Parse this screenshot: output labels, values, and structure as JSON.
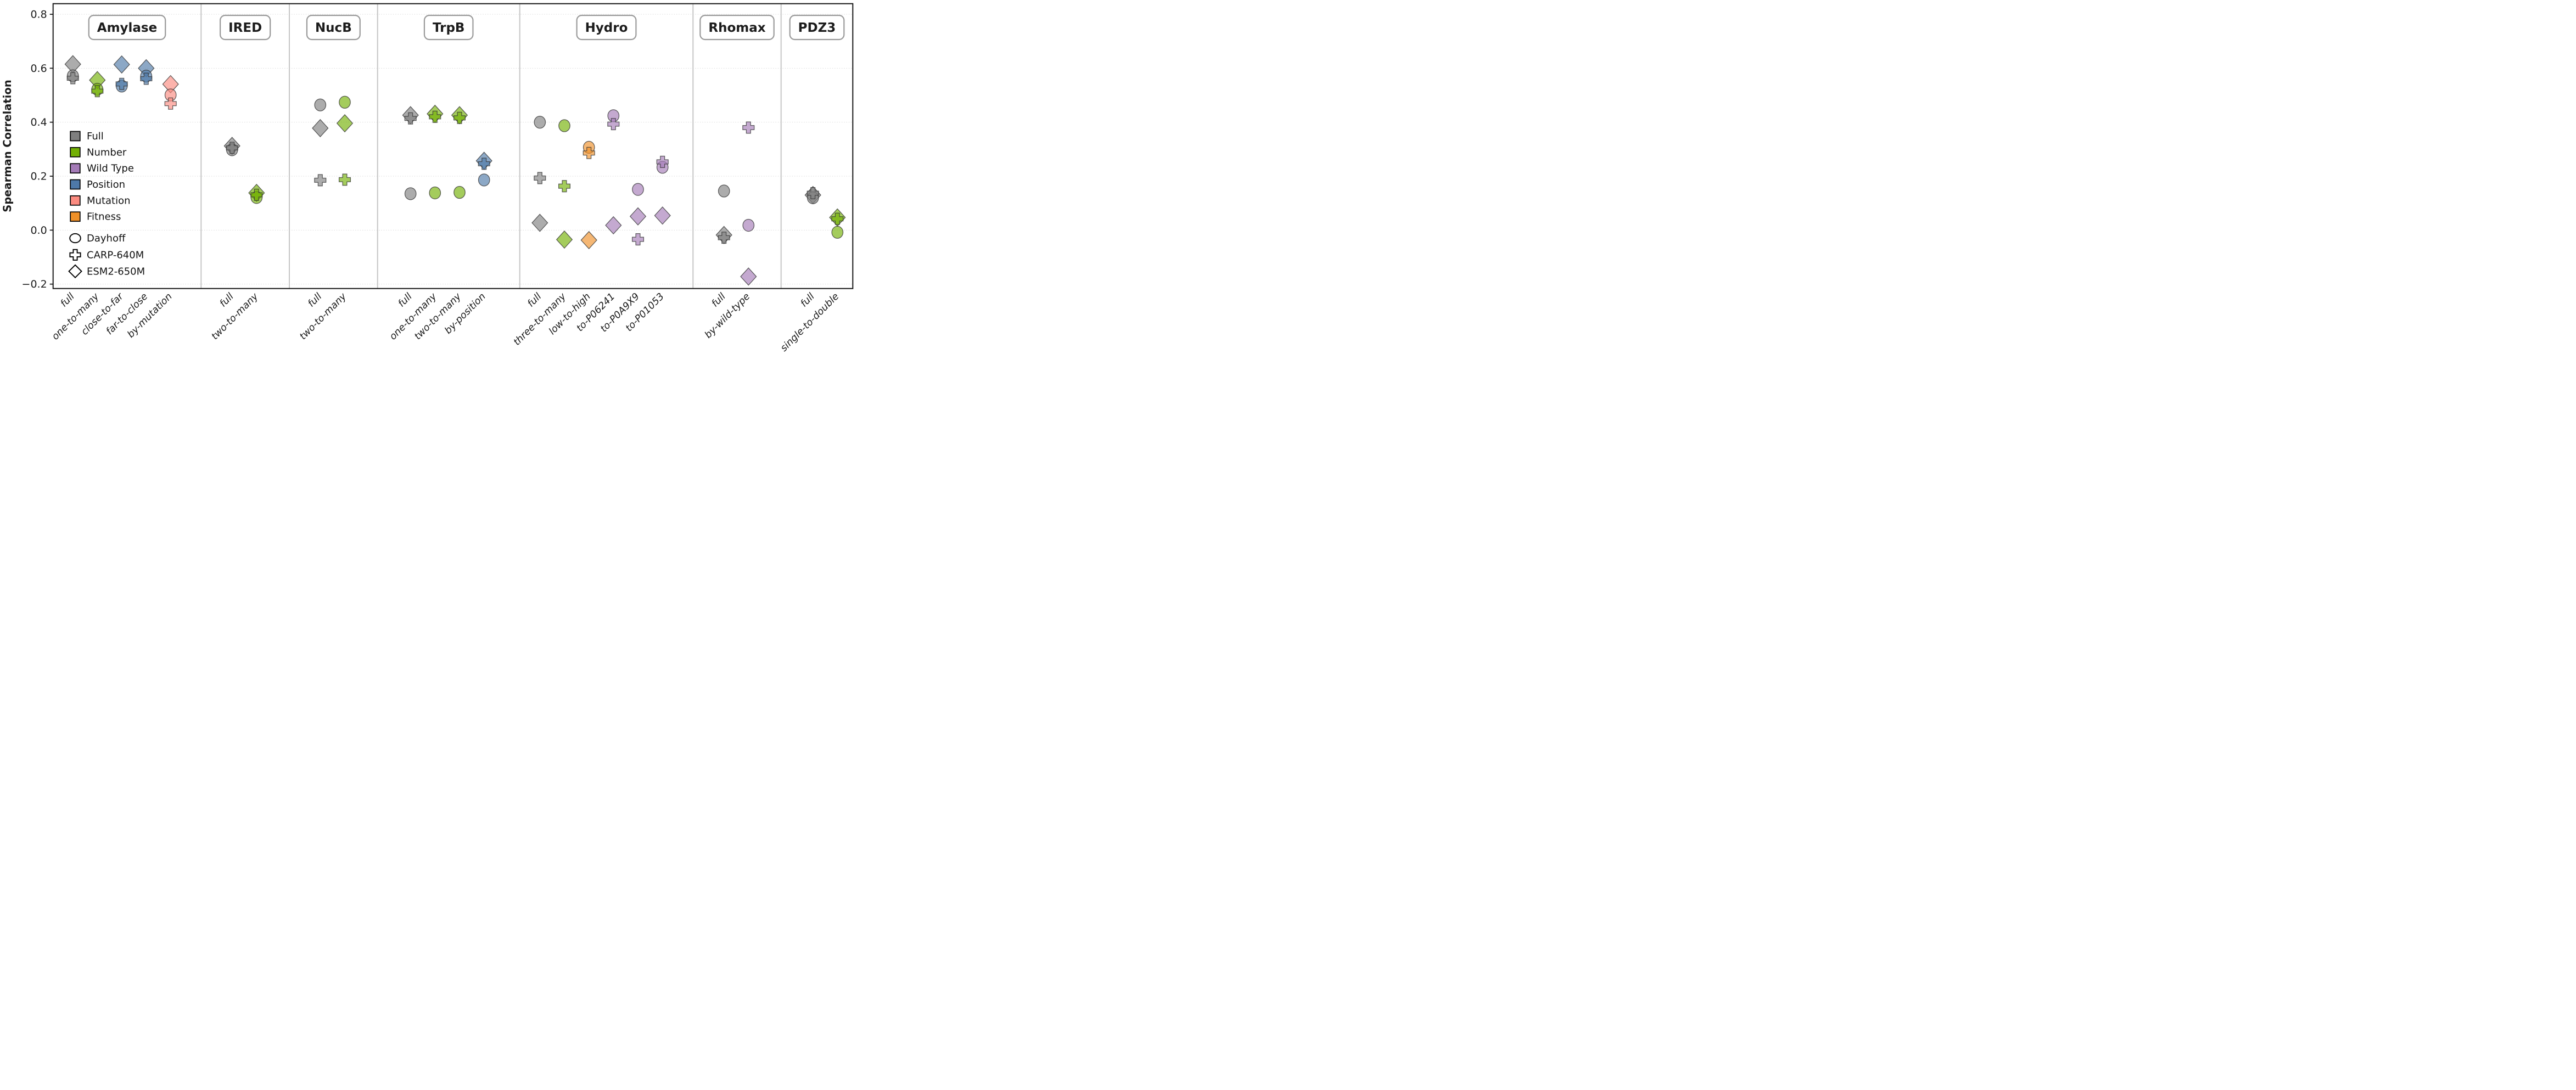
{
  "chart_data": {
    "type": "scatter",
    "title": "",
    "ylabel": "Spearman Correlation",
    "ylim": [
      -0.27,
      0.84
    ],
    "yticks": [
      0.8,
      0.6,
      0.4,
      0.2,
      0.0,
      -0.2
    ],
    "ytick_labels": [
      "0.8",
      "0.6",
      "0.4",
      "0.2",
      "0.0",
      "−0.2"
    ],
    "grid": "horizontal dotted lines at each ytick",
    "legend_position": "upper-left inside plot",
    "series_colors": {
      "Full": "#7F7F7F",
      "Number": "#73B005",
      "Wild Type": "#A47BB7",
      "Position": "#4E79A8",
      "Mutation": "#FB8B80",
      "Fitness": "#EF9129"
    },
    "marker_shapes": {
      "Dayhoff": "circle",
      "CARP-640M": "plus",
      "ESM2-650M": "diamond"
    },
    "legend": {
      "colors": [
        {
          "label": "Full",
          "color": "#7F7F7F"
        },
        {
          "label": "Number",
          "color": "#73B005"
        },
        {
          "label": "Wild Type",
          "color": "#A47BB7"
        },
        {
          "label": "Position",
          "color": "#4E79A8"
        },
        {
          "label": "Mutation",
          "color": "#FB8B80"
        },
        {
          "label": "Fitness",
          "color": "#EF9129"
        }
      ],
      "markers": [
        {
          "label": "Dayhoff",
          "marker": "circle"
        },
        {
          "label": "CARP-640M",
          "marker": "plus"
        },
        {
          "label": "ESM2-650M",
          "marker": "diamond"
        }
      ]
    },
    "panels": [
      {
        "title": "Amylase",
        "categories": [
          "full",
          "one-to-many",
          "close-to-far",
          "far-to-close",
          "by-mutation"
        ],
        "points": [
          {
            "category": "full",
            "group": "Full",
            "model": "ESM2-650M",
            "value": 0.615
          },
          {
            "category": "full",
            "group": "Full",
            "model": "Dayhoff",
            "value": 0.572
          },
          {
            "category": "full",
            "group": "Full",
            "model": "CARP-640M",
            "value": 0.563
          },
          {
            "category": "one-to-many",
            "group": "Number",
            "model": "ESM2-650M",
            "value": 0.556
          },
          {
            "category": "one-to-many",
            "group": "Number",
            "model": "Dayhoff",
            "value": 0.522
          },
          {
            "category": "one-to-many",
            "group": "Number",
            "model": "CARP-640M",
            "value": 0.515
          },
          {
            "category": "close-to-far",
            "group": "Position",
            "model": "ESM2-650M",
            "value": 0.614
          },
          {
            "category": "close-to-far",
            "group": "Position",
            "model": "CARP-640M",
            "value": 0.542
          },
          {
            "category": "close-to-far",
            "group": "Position",
            "model": "Dayhoff",
            "value": 0.534
          },
          {
            "category": "far-to-close",
            "group": "Position",
            "model": "ESM2-650M",
            "value": 0.6
          },
          {
            "category": "far-to-close",
            "group": "Position",
            "model": "Dayhoff",
            "value": 0.571
          },
          {
            "category": "far-to-close",
            "group": "Position",
            "model": "CARP-640M",
            "value": 0.561
          },
          {
            "category": "by-mutation",
            "group": "Mutation",
            "model": "ESM2-650M",
            "value": 0.541
          },
          {
            "category": "by-mutation",
            "group": "Mutation",
            "model": "Dayhoff",
            "value": 0.501
          },
          {
            "category": "by-mutation",
            "group": "Mutation",
            "model": "CARP-640M",
            "value": 0.469
          }
        ]
      },
      {
        "title": "IRED",
        "categories": [
          "full",
          "two-to-many"
        ],
        "points": [
          {
            "category": "full",
            "group": "Full",
            "model": "ESM2-650M",
            "value": 0.312
          },
          {
            "category": "full",
            "group": "Full",
            "model": "CARP-640M",
            "value": 0.305
          },
          {
            "category": "full",
            "group": "Full",
            "model": "Dayhoff",
            "value": 0.298
          },
          {
            "category": "two-to-many",
            "group": "Number",
            "model": "ESM2-650M",
            "value": 0.138
          },
          {
            "category": "two-to-many",
            "group": "Number",
            "model": "CARP-640M",
            "value": 0.131
          },
          {
            "category": "two-to-many",
            "group": "Number",
            "model": "Dayhoff",
            "value": 0.121
          }
        ]
      },
      {
        "title": "NucB",
        "categories": [
          "full",
          "two-to-many"
        ],
        "points": [
          {
            "category": "full",
            "group": "Full",
            "model": "Dayhoff",
            "value": 0.464
          },
          {
            "category": "full",
            "group": "Full",
            "model": "ESM2-650M",
            "value": 0.378
          },
          {
            "category": "full",
            "group": "Full",
            "model": "CARP-640M",
            "value": 0.185
          },
          {
            "category": "two-to-many",
            "group": "Number",
            "model": "Dayhoff",
            "value": 0.474
          },
          {
            "category": "two-to-many",
            "group": "Number",
            "model": "ESM2-650M",
            "value": 0.396
          },
          {
            "category": "two-to-many",
            "group": "Number",
            "model": "CARP-640M",
            "value": 0.187
          }
        ]
      },
      {
        "title": "TrpB",
        "categories": [
          "full",
          "one-to-many",
          "two-to-many",
          "by-position"
        ],
        "points": [
          {
            "category": "full",
            "group": "Full",
            "model": "ESM2-650M",
            "value": 0.426
          },
          {
            "category": "full",
            "group": "Full",
            "model": "CARP-640M",
            "value": 0.414
          },
          {
            "category": "full",
            "group": "Full",
            "model": "Dayhoff",
            "value": 0.135
          },
          {
            "category": "one-to-many",
            "group": "Number",
            "model": "ESM2-650M",
            "value": 0.431
          },
          {
            "category": "one-to-many",
            "group": "Number",
            "model": "CARP-640M",
            "value": 0.42
          },
          {
            "category": "one-to-many",
            "group": "Number",
            "model": "Dayhoff",
            "value": 0.138
          },
          {
            "category": "two-to-many",
            "group": "Number",
            "model": "ESM2-650M",
            "value": 0.426
          },
          {
            "category": "two-to-many",
            "group": "Number",
            "model": "CARP-640M",
            "value": 0.416
          },
          {
            "category": "two-to-many",
            "group": "Number",
            "model": "Dayhoff",
            "value": 0.14
          },
          {
            "category": "by-position",
            "group": "Position",
            "model": "ESM2-650M",
            "value": 0.257
          },
          {
            "category": "by-position",
            "group": "Position",
            "model": "CARP-640M",
            "value": 0.246
          },
          {
            "category": "by-position",
            "group": "Position",
            "model": "Dayhoff",
            "value": 0.186
          }
        ]
      },
      {
        "title": "Hydro",
        "categories": [
          "full",
          "three-to-many",
          "low-to-high",
          "to-P06241",
          "to-P0A9X9",
          "to-P01053"
        ],
        "points": [
          {
            "category": "full",
            "group": "Full",
            "model": "Dayhoff",
            "value": 0.4
          },
          {
            "category": "full",
            "group": "Full",
            "model": "CARP-640M",
            "value": 0.193
          },
          {
            "category": "full",
            "group": "Full",
            "model": "ESM2-650M",
            "value": 0.027
          },
          {
            "category": "three-to-many",
            "group": "Number",
            "model": "Dayhoff",
            "value": 0.387
          },
          {
            "category": "three-to-many",
            "group": "Number",
            "model": "CARP-640M",
            "value": 0.163
          },
          {
            "category": "three-to-many",
            "group": "Number",
            "model": "ESM2-650M",
            "value": -0.035
          },
          {
            "category": "low-to-high",
            "group": "Fitness",
            "model": "Dayhoff",
            "value": 0.307
          },
          {
            "category": "low-to-high",
            "group": "Fitness",
            "model": "CARP-640M",
            "value": 0.286
          },
          {
            "category": "low-to-high",
            "group": "Fitness",
            "model": "ESM2-650M",
            "value": -0.037
          },
          {
            "category": "to-P06241",
            "group": "Wild Type",
            "model": "Dayhoff",
            "value": 0.424
          },
          {
            "category": "to-P06241",
            "group": "Wild Type",
            "model": "CARP-640M",
            "value": 0.393
          },
          {
            "category": "to-P06241",
            "group": "Wild Type",
            "model": "ESM2-650M",
            "value": 0.018
          },
          {
            "category": "to-P0A9X9",
            "group": "Wild Type",
            "model": "Dayhoff",
            "value": 0.151
          },
          {
            "category": "to-P0A9X9",
            "group": "Wild Type",
            "model": "ESM2-650M",
            "value": 0.051
          },
          {
            "category": "to-P0A9X9",
            "group": "Wild Type",
            "model": "CARP-640M",
            "value": -0.034
          },
          {
            "category": "to-P01053",
            "group": "Wild Type",
            "model": "CARP-640M",
            "value": 0.253
          },
          {
            "category": "to-P01053",
            "group": "Wild Type",
            "model": "Dayhoff",
            "value": 0.233
          },
          {
            "category": "to-P01053",
            "group": "Wild Type",
            "model": "ESM2-650M",
            "value": 0.054
          }
        ]
      },
      {
        "title": "Rhomax",
        "categories": [
          "full",
          "by-wild-type"
        ],
        "points": [
          {
            "category": "full",
            "group": "Full",
            "model": "Dayhoff",
            "value": 0.145
          },
          {
            "category": "full",
            "group": "Full",
            "model": "ESM2-650M",
            "value": -0.018
          },
          {
            "category": "full",
            "group": "Full",
            "model": "CARP-640M",
            "value": -0.028
          },
          {
            "category": "by-wild-type",
            "group": "Wild Type",
            "model": "CARP-640M",
            "value": 0.38
          },
          {
            "category": "by-wild-type",
            "group": "Wild Type",
            "model": "Dayhoff",
            "value": 0.018
          },
          {
            "category": "by-wild-type",
            "group": "Wild Type",
            "model": "ESM2-650M",
            "value": -0.172
          }
        ]
      },
      {
        "title": "PDZ3",
        "categories": [
          "full",
          "single-to-double"
        ],
        "points": [
          {
            "category": "full",
            "group": "Full",
            "model": "CARP-640M",
            "value": 0.137
          },
          {
            "category": "full",
            "group": "Full",
            "model": "ESM2-650M",
            "value": 0.13
          },
          {
            "category": "full",
            "group": "Full",
            "model": "Dayhoff",
            "value": 0.12
          },
          {
            "category": "single-to-double",
            "group": "Number",
            "model": "ESM2-650M",
            "value": 0.047
          },
          {
            "category": "single-to-double",
            "group": "Number",
            "model": "CARP-640M",
            "value": 0.042
          },
          {
            "category": "single-to-double",
            "group": "Number",
            "model": "Dayhoff",
            "value": -0.008
          }
        ]
      }
    ]
  }
}
